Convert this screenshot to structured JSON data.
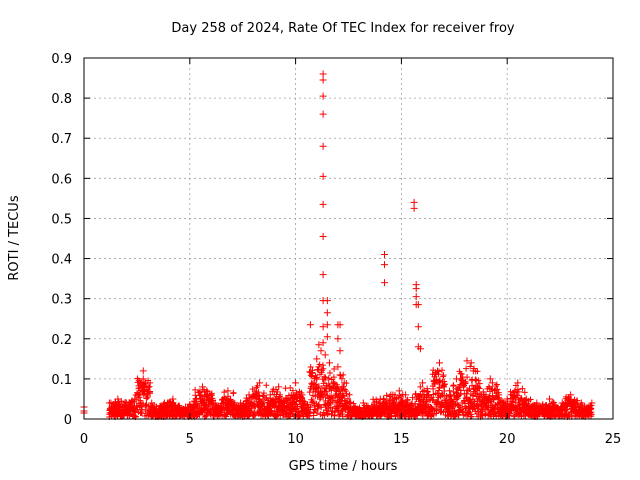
{
  "chart_data": {
    "type": "scatter",
    "title": "Day 258 of 2024, Rate Of TEC Index for receiver froy",
    "xlabel": "GPS time / hours",
    "ylabel": "ROTI / TECUs",
    "xlim": [
      0,
      25
    ],
    "ylim": [
      0,
      0.9
    ],
    "x_ticks": [
      "0",
      "5",
      "10",
      "15",
      "20",
      "25"
    ],
    "y_ticks": [
      "0",
      "0.1",
      "0.2",
      "0.3",
      "0.4",
      "0.5",
      "0.6",
      "0.7",
      "0.8",
      "0.9"
    ],
    "grid": true,
    "marker": "+",
    "marker_color": "#ff0000",
    "series": [
      {
        "points": [
          [
            0.0,
            0.02
          ],
          [
            0.0,
            0.015
          ],
          [
            0.0,
            0.03
          ],
          [
            1.2,
            0.04
          ],
          [
            1.6,
            0.05
          ],
          [
            2.0,
            0.04
          ],
          [
            2.4,
            0.05
          ],
          [
            2.8,
            0.12
          ],
          [
            2.8,
            0.1
          ],
          [
            2.8,
            0.08
          ],
          [
            3.2,
            0.04
          ],
          [
            3.8,
            0.04
          ],
          [
            4.2,
            0.05
          ],
          [
            4.8,
            0.03
          ],
          [
            5.3,
            0.05
          ],
          [
            5.6,
            0.08
          ],
          [
            5.8,
            0.07
          ],
          [
            6.2,
            0.04
          ],
          [
            6.8,
            0.07
          ],
          [
            7.4,
            0.04
          ],
          [
            7.8,
            0.06
          ],
          [
            8.3,
            0.09
          ],
          [
            8.8,
            0.06
          ],
          [
            9.2,
            0.08
          ],
          [
            9.6,
            0.05
          ],
          [
            10.0,
            0.09
          ],
          [
            10.3,
            0.06
          ],
          [
            10.7,
            0.235
          ],
          [
            11.0,
            0.15
          ],
          [
            11.1,
            0.185
          ],
          [
            11.1,
            0.13
          ],
          [
            11.2,
            0.17
          ],
          [
            11.3,
            0.86
          ],
          [
            11.3,
            0.845
          ],
          [
            11.3,
            0.805
          ],
          [
            11.3,
            0.76
          ],
          [
            11.3,
            0.68
          ],
          [
            11.3,
            0.605
          ],
          [
            11.3,
            0.535
          ],
          [
            11.3,
            0.455
          ],
          [
            11.3,
            0.36
          ],
          [
            11.3,
            0.295
          ],
          [
            11.3,
            0.23
          ],
          [
            11.3,
            0.19
          ],
          [
            11.5,
            0.295
          ],
          [
            11.5,
            0.265
          ],
          [
            11.5,
            0.235
          ],
          [
            11.5,
            0.205
          ],
          [
            11.4,
            0.16
          ],
          [
            11.6,
            0.14
          ],
          [
            12.0,
            0.235
          ],
          [
            12.1,
            0.235
          ],
          [
            12.0,
            0.2
          ],
          [
            12.1,
            0.17
          ],
          [
            12.0,
            0.13
          ],
          [
            12.1,
            0.11
          ],
          [
            12.2,
            0.08
          ],
          [
            12.6,
            0.04
          ],
          [
            13.2,
            0.04
          ],
          [
            13.6,
            0.03
          ],
          [
            14.0,
            0.05
          ],
          [
            14.2,
            0.41
          ],
          [
            14.2,
            0.385
          ],
          [
            14.2,
            0.34
          ],
          [
            14.5,
            0.06
          ],
          [
            14.9,
            0.07
          ],
          [
            15.2,
            0.06
          ],
          [
            15.6,
            0.54
          ],
          [
            15.6,
            0.525
          ],
          [
            15.7,
            0.335
          ],
          [
            15.7,
            0.325
          ],
          [
            15.7,
            0.305
          ],
          [
            15.7,
            0.285
          ],
          [
            15.8,
            0.285
          ],
          [
            15.8,
            0.23
          ],
          [
            15.8,
            0.18
          ],
          [
            15.9,
            0.175
          ],
          [
            16.0,
            0.09
          ],
          [
            16.2,
            0.06
          ],
          [
            16.8,
            0.14
          ],
          [
            16.8,
            0.09
          ],
          [
            17.3,
            0.06
          ],
          [
            17.6,
            0.1
          ],
          [
            17.8,
            0.1
          ],
          [
            18.1,
            0.145
          ],
          [
            18.3,
            0.14
          ],
          [
            18.4,
            0.12
          ],
          [
            18.6,
            0.08
          ],
          [
            19.0,
            0.06
          ],
          [
            19.2,
            0.1
          ],
          [
            19.3,
            0.09
          ],
          [
            19.6,
            0.06
          ],
          [
            20.0,
            0.05
          ],
          [
            20.5,
            0.09
          ],
          [
            20.9,
            0.05
          ],
          [
            21.4,
            0.04
          ],
          [
            22.0,
            0.05
          ],
          [
            22.6,
            0.04
          ],
          [
            23.0,
            0.06
          ],
          [
            23.5,
            0.04
          ],
          [
            24.0,
            0.04
          ]
        ]
      }
    ]
  }
}
